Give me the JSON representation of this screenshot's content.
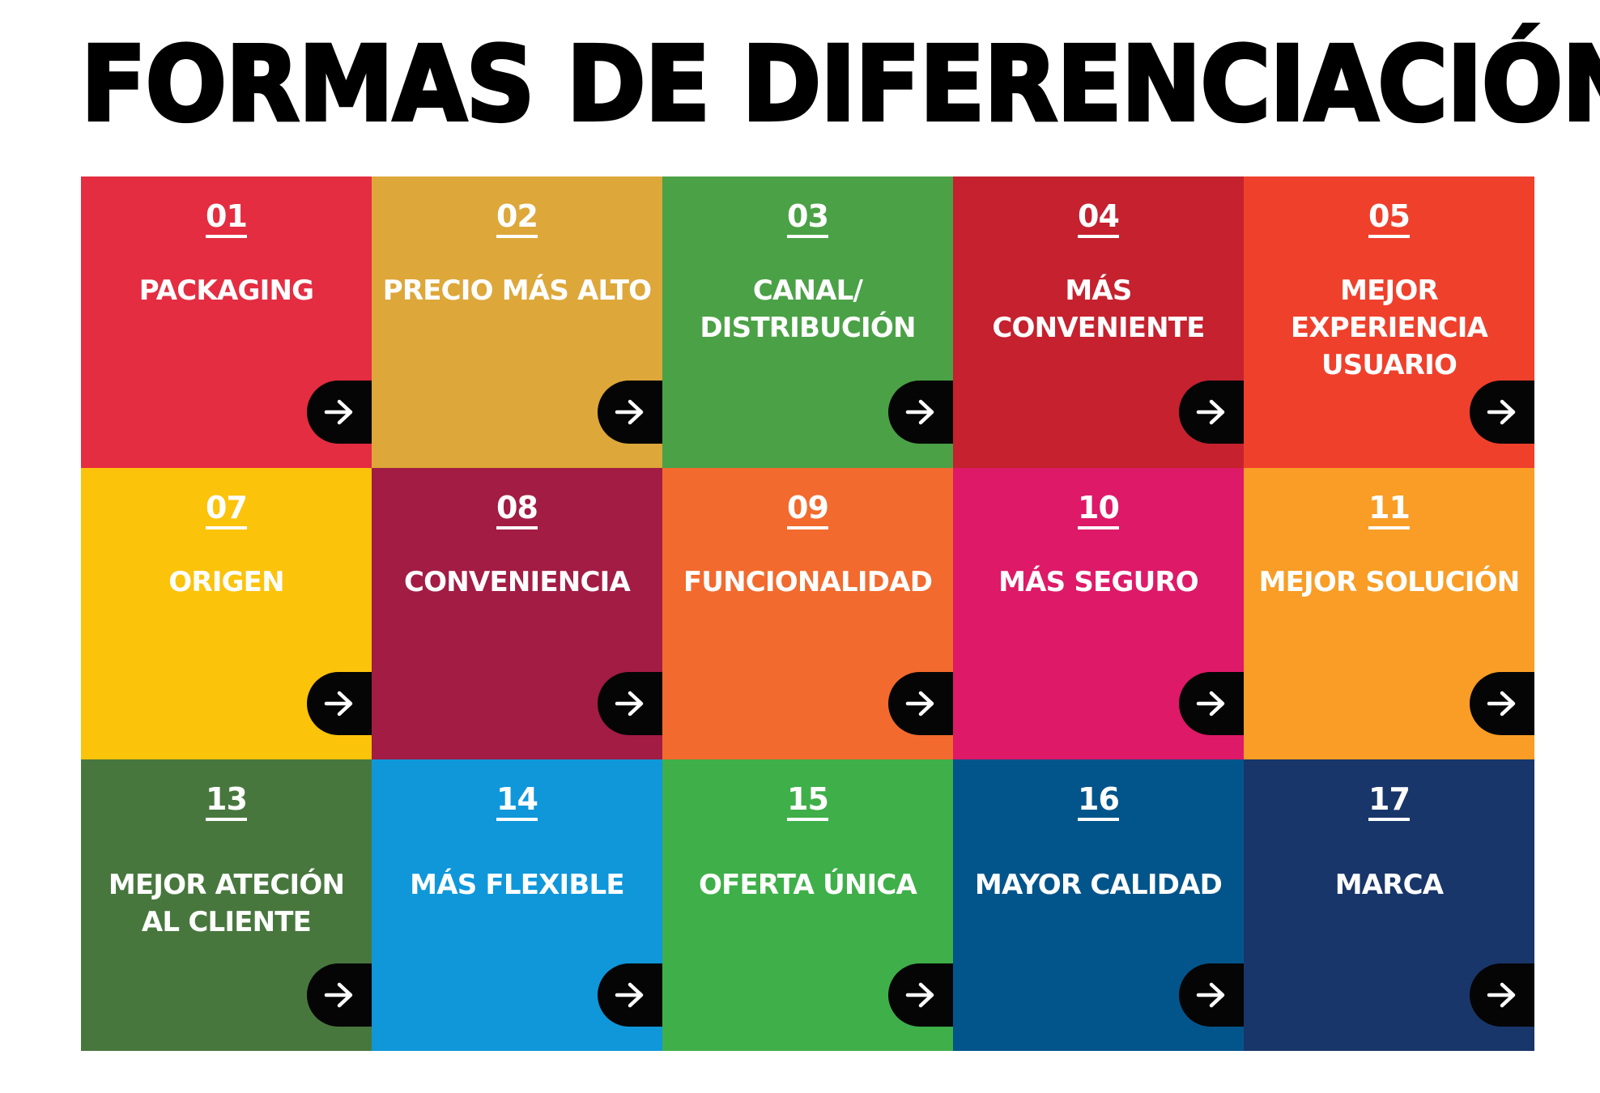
{
  "title": "FORMAS DE DIFERENCIACIÓN",
  "tiles": [
    {
      "number": "01",
      "label": "PACKAGING",
      "color": "#E42D41"
    },
    {
      "number": "02",
      "label": "PRECIO MÁS ALTO",
      "color": "#DDA73A"
    },
    {
      "number": "03",
      "label": "CANAL/\nDISTRIBUCIÓN",
      "color": "#4BA146"
    },
    {
      "number": "04",
      "label": "MÁS\nCONVENIENTE",
      "color": "#C5212F"
    },
    {
      "number": "05",
      "label": "MEJOR\nEXPERIENCIA\nUSUARIO",
      "color": "#EF402C"
    },
    {
      "number": "07",
      "label": "ORIGEN",
      "color": "#FCC30B"
    },
    {
      "number": "08",
      "label": "CONVENIENCIA",
      "color": "#A21C44"
    },
    {
      "number": "09",
      "label": "FUNCIONALIDAD",
      "color": "#F26A2D"
    },
    {
      "number": "10",
      "label": "MÁS SEGURO",
      "color": "#DE1968"
    },
    {
      "number": "11",
      "label": "MEJOR SOLUCIÓN",
      "color": "#F99D26"
    },
    {
      "number": "13",
      "label": "MEJOR ATECIÓN\nAL CLIENTE",
      "color": "#48773E"
    },
    {
      "number": "14",
      "label": "MÁS FLEXIBLE",
      "color": "#0F97DA"
    },
    {
      "number": "15",
      "label": "OFERTA ÚNICA",
      "color": "#3FAF49"
    },
    {
      "number": "16",
      "label": "MAYOR CALIDAD",
      "color": "#02558B"
    },
    {
      "number": "17",
      "label": "MARCA",
      "color": "#19366A"
    }
  ],
  "arrow_icon": "arrow-right-icon"
}
